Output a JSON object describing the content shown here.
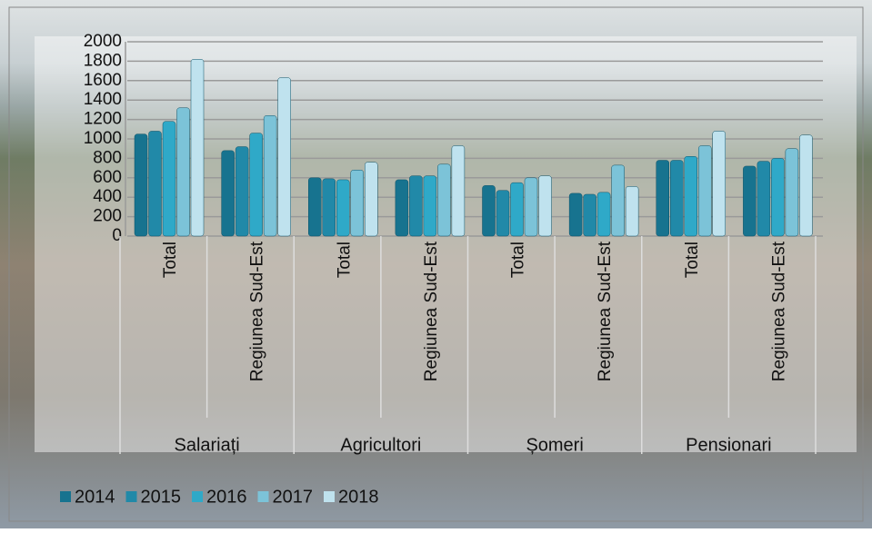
{
  "chart_data": {
    "type": "bar",
    "categories": [
      "Total",
      "Regiunea Sud-Est",
      "Total",
      "Regiunea Sud-Est",
      "Total",
      "Regiunea Sud-Est",
      "Total",
      "Regiunea Sud-Est"
    ],
    "groups": [
      "Salariați",
      "Agricultori",
      "Șomeri",
      "Pensionari"
    ],
    "series": [
      {
        "name": "2014",
        "color": "#17738f",
        "values": [
          1050,
          880,
          600,
          580,
          520,
          440,
          780,
          720
        ]
      },
      {
        "name": "2015",
        "color": "#2189a8",
        "values": [
          1080,
          920,
          590,
          620,
          470,
          430,
          780,
          770
        ]
      },
      {
        "name": "2016",
        "color": "#2fa9c8",
        "values": [
          1180,
          1060,
          580,
          620,
          550,
          450,
          820,
          800
        ]
      },
      {
        "name": "2017",
        "color": "#7cc3d8",
        "values": [
          1320,
          1240,
          680,
          740,
          600,
          730,
          930,
          900
        ]
      },
      {
        "name": "2018",
        "color": "#bfe2ee",
        "values": [
          1820,
          1630,
          760,
          930,
          620,
          510,
          1080,
          1040
        ]
      }
    ],
    "ylim": [
      0,
      2000
    ],
    "yticks": [
      0,
      200,
      400,
      600,
      800,
      1000,
      1200,
      1400,
      1600,
      1800,
      2000
    ],
    "grid": true
  }
}
